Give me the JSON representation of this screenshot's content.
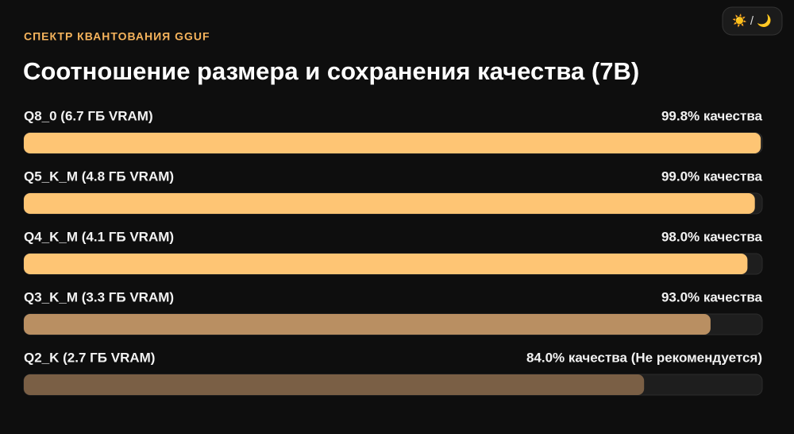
{
  "chart_data": {
    "type": "bar",
    "subtitle": "СПЕКТР КВАНТОВАНИЯ GGUF",
    "title": "Соотношение размера и сохранения качества (7B)",
    "theme_toggle": "☀️ / 🌙",
    "categories": [
      "Q8_0 (6.7 ГБ VRAM)",
      "Q5_K_M (4.8 ГБ VRAM)",
      "Q4_K_M (4.1 ГБ VRAM)",
      "Q3_K_M (3.3 ГБ VRAM)",
      "Q2_K (2.7 ГБ VRAM)"
    ],
    "values": [
      99.8,
      99.0,
      98.0,
      93.0,
      84.0
    ],
    "value_labels": [
      "99.8% качества",
      "99.0% качества",
      "98.0% качества",
      "93.0% качества",
      "84.0% качества (Не рекомендуется)"
    ],
    "colors": [
      "#fec574",
      "#fec574",
      "#fec574",
      "#b98f62",
      "#7a5f45"
    ],
    "xlim": [
      0,
      100
    ]
  }
}
